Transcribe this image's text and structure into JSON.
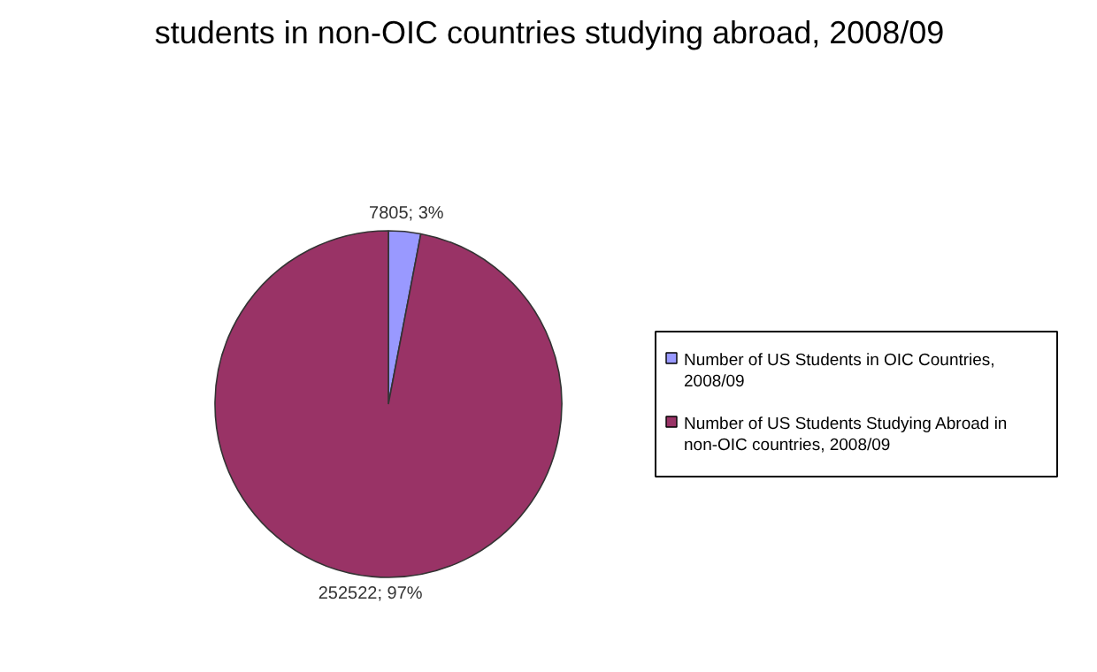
{
  "chart_data": {
    "type": "pie",
    "title": "students in non-OIC countries studying abroad, 2008/09",
    "categories": [
      "Number of US Students in OIC Countries, 2008/09",
      "Number of US Students Studying Abroad in non-OIC countries, 2008/09"
    ],
    "values": [
      7805,
      252522
    ],
    "colors": [
      "#9999ff",
      "#993366"
    ],
    "value_labels": [
      "7805; 3%",
      "252522; 97%"
    ],
    "legend": "right"
  }
}
